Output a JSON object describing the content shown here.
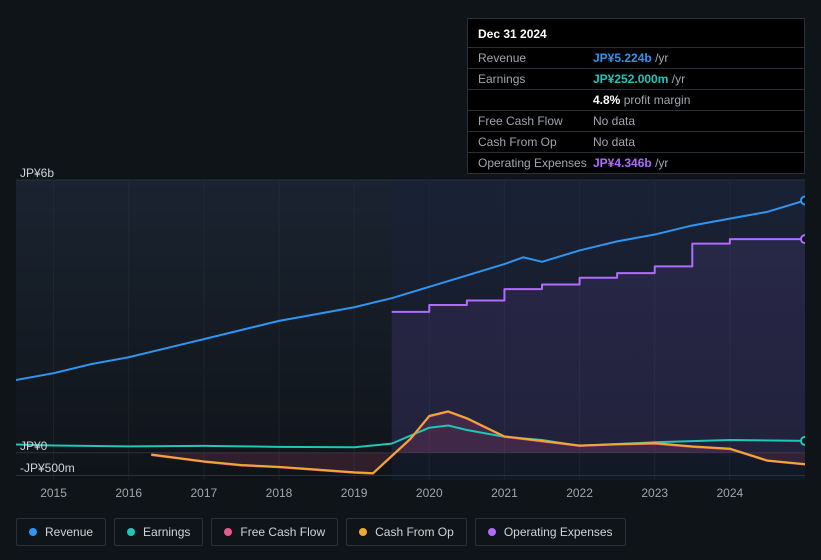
{
  "tooltip": {
    "date": "Dec 31 2024",
    "rows": [
      {
        "label": "Revenue",
        "value": "JP¥5.224b",
        "unit": "/yr",
        "color": "#2f95f0"
      },
      {
        "label": "Earnings",
        "value": "JP¥252.000m",
        "unit": "/yr",
        "color": "#1fc7b6"
      }
    ],
    "margin_value": "4.8%",
    "margin_label": "profit margin",
    "rows2": [
      {
        "label": "Free Cash Flow",
        "value": "No data",
        "color": "#a0a6b0"
      },
      {
        "label": "Cash From Op",
        "value": "No data",
        "color": "#a0a6b0"
      },
      {
        "label": "Operating Expenses",
        "value": "JP¥4.346b",
        "unit": "/yr",
        "color": "#b06bff"
      }
    ]
  },
  "chart": {
    "type": "area-line",
    "background_color": "#0f1419",
    "plot_bg_gradient_top": "#1a2330",
    "plot_bg_gradient_bottom": "#0f1419",
    "grid_color": "#2a3038",
    "text_color": "#a0a6b0",
    "axis_fontsize": 12,
    "y_ticks": [
      {
        "value": 6000,
        "label": "JP¥6b"
      },
      {
        "value": 0,
        "label": "JP¥0"
      },
      {
        "value": -500,
        "label": "-JP¥500m"
      }
    ],
    "ylim": [
      -600,
      6000
    ],
    "x_ticks": [
      "2015",
      "2016",
      "2017",
      "2018",
      "2019",
      "2020",
      "2021",
      "2022",
      "2023",
      "2024"
    ],
    "x_range": [
      2014.5,
      2025.0
    ],
    "series": [
      {
        "name": "Revenue",
        "color": "#2f95f0",
        "line_width": 2,
        "fill_opacity": 0,
        "points": [
          [
            2014.5,
            1600
          ],
          [
            2015,
            1750
          ],
          [
            2015.5,
            1950
          ],
          [
            2016,
            2100
          ],
          [
            2016.5,
            2300
          ],
          [
            2017,
            2500
          ],
          [
            2017.5,
            2700
          ],
          [
            2018,
            2900
          ],
          [
            2018.5,
            3050
          ],
          [
            2019,
            3200
          ],
          [
            2019.5,
            3400
          ],
          [
            2020,
            3650
          ],
          [
            2020.5,
            3900
          ],
          [
            2021,
            4150
          ],
          [
            2021.25,
            4300
          ],
          [
            2021.5,
            4200
          ],
          [
            2022,
            4450
          ],
          [
            2022.5,
            4650
          ],
          [
            2023,
            4800
          ],
          [
            2023.5,
            5000
          ],
          [
            2024,
            5150
          ],
          [
            2024.5,
            5300
          ],
          [
            2025,
            5550
          ]
        ]
      },
      {
        "name": "Earnings",
        "color": "#1fc7b6",
        "line_width": 2,
        "fill_opacity": 0,
        "points": [
          [
            2014.5,
            180
          ],
          [
            2015,
            160
          ],
          [
            2016,
            140
          ],
          [
            2017,
            150
          ],
          [
            2018,
            130
          ],
          [
            2019,
            120
          ],
          [
            2019.5,
            200
          ],
          [
            2020,
            550
          ],
          [
            2020.25,
            600
          ],
          [
            2020.5,
            500
          ],
          [
            2021,
            350
          ],
          [
            2021.5,
            280
          ],
          [
            2022,
            150
          ],
          [
            2023,
            230
          ],
          [
            2024,
            280
          ],
          [
            2025,
            260
          ]
        ]
      },
      {
        "name": "Free Cash Flow",
        "color": "#e85a8a",
        "line_width": 2,
        "fill_opacity": 0.15,
        "points": [
          [
            2016.3,
            -50
          ],
          [
            2017,
            -200
          ],
          [
            2017.5,
            -280
          ],
          [
            2018,
            -320
          ],
          [
            2018.5,
            -380
          ],
          [
            2019,
            -440
          ],
          [
            2019.25,
            -460
          ],
          [
            2019.75,
            300
          ],
          [
            2020,
            800
          ],
          [
            2020.25,
            900
          ],
          [
            2020.5,
            750
          ],
          [
            2021,
            350
          ],
          [
            2021.5,
            250
          ],
          [
            2022,
            150
          ],
          [
            2022.5,
            180
          ],
          [
            2023,
            200
          ],
          [
            2023.5,
            130
          ],
          [
            2024,
            80
          ],
          [
            2024.5,
            -180
          ],
          [
            2025,
            -260
          ]
        ]
      },
      {
        "name": "Cash From Op",
        "color": "#f0a830",
        "line_width": 2,
        "fill_opacity": 0,
        "points": [
          [
            2016.3,
            -40
          ],
          [
            2017,
            -190
          ],
          [
            2017.5,
            -270
          ],
          [
            2018,
            -310
          ],
          [
            2018.5,
            -370
          ],
          [
            2019,
            -430
          ],
          [
            2019.25,
            -450
          ],
          [
            2019.75,
            310
          ],
          [
            2020,
            810
          ],
          [
            2020.25,
            910
          ],
          [
            2020.5,
            760
          ],
          [
            2021,
            360
          ],
          [
            2021.5,
            260
          ],
          [
            2022,
            160
          ],
          [
            2022.5,
            190
          ],
          [
            2023,
            210
          ],
          [
            2023.5,
            140
          ],
          [
            2024,
            90
          ],
          [
            2024.5,
            -170
          ],
          [
            2025,
            -250
          ]
        ]
      },
      {
        "name": "Operating Expenses",
        "color": "#b06bff",
        "line_width": 2,
        "fill_opacity": 0.1,
        "step": true,
        "points": [
          [
            2019.5,
            3100
          ],
          [
            2020,
            3100
          ],
          [
            2020,
            3250
          ],
          [
            2020.5,
            3250
          ],
          [
            2020.5,
            3350
          ],
          [
            2021,
            3350
          ],
          [
            2021,
            3600
          ],
          [
            2021.5,
            3600
          ],
          [
            2021.5,
            3700
          ],
          [
            2022,
            3700
          ],
          [
            2022,
            3850
          ],
          [
            2022.5,
            3850
          ],
          [
            2022.5,
            3950
          ],
          [
            2023,
            3950
          ],
          [
            2023,
            4100
          ],
          [
            2023.5,
            4100
          ],
          [
            2023.5,
            4600
          ],
          [
            2024,
            4600
          ],
          [
            2024,
            4700
          ],
          [
            2025,
            4700
          ]
        ]
      }
    ],
    "highlight_band": {
      "from": 2019.5,
      "to": 2025.0,
      "color": "#1a2340",
      "opacity": 0.35
    }
  },
  "legend": [
    {
      "label": "Revenue",
      "color": "#2f95f0"
    },
    {
      "label": "Earnings",
      "color": "#1fc7b6"
    },
    {
      "label": "Free Cash Flow",
      "color": "#e85a8a"
    },
    {
      "label": "Cash From Op",
      "color": "#f0a830"
    },
    {
      "label": "Operating Expenses",
      "color": "#b06bff"
    }
  ]
}
